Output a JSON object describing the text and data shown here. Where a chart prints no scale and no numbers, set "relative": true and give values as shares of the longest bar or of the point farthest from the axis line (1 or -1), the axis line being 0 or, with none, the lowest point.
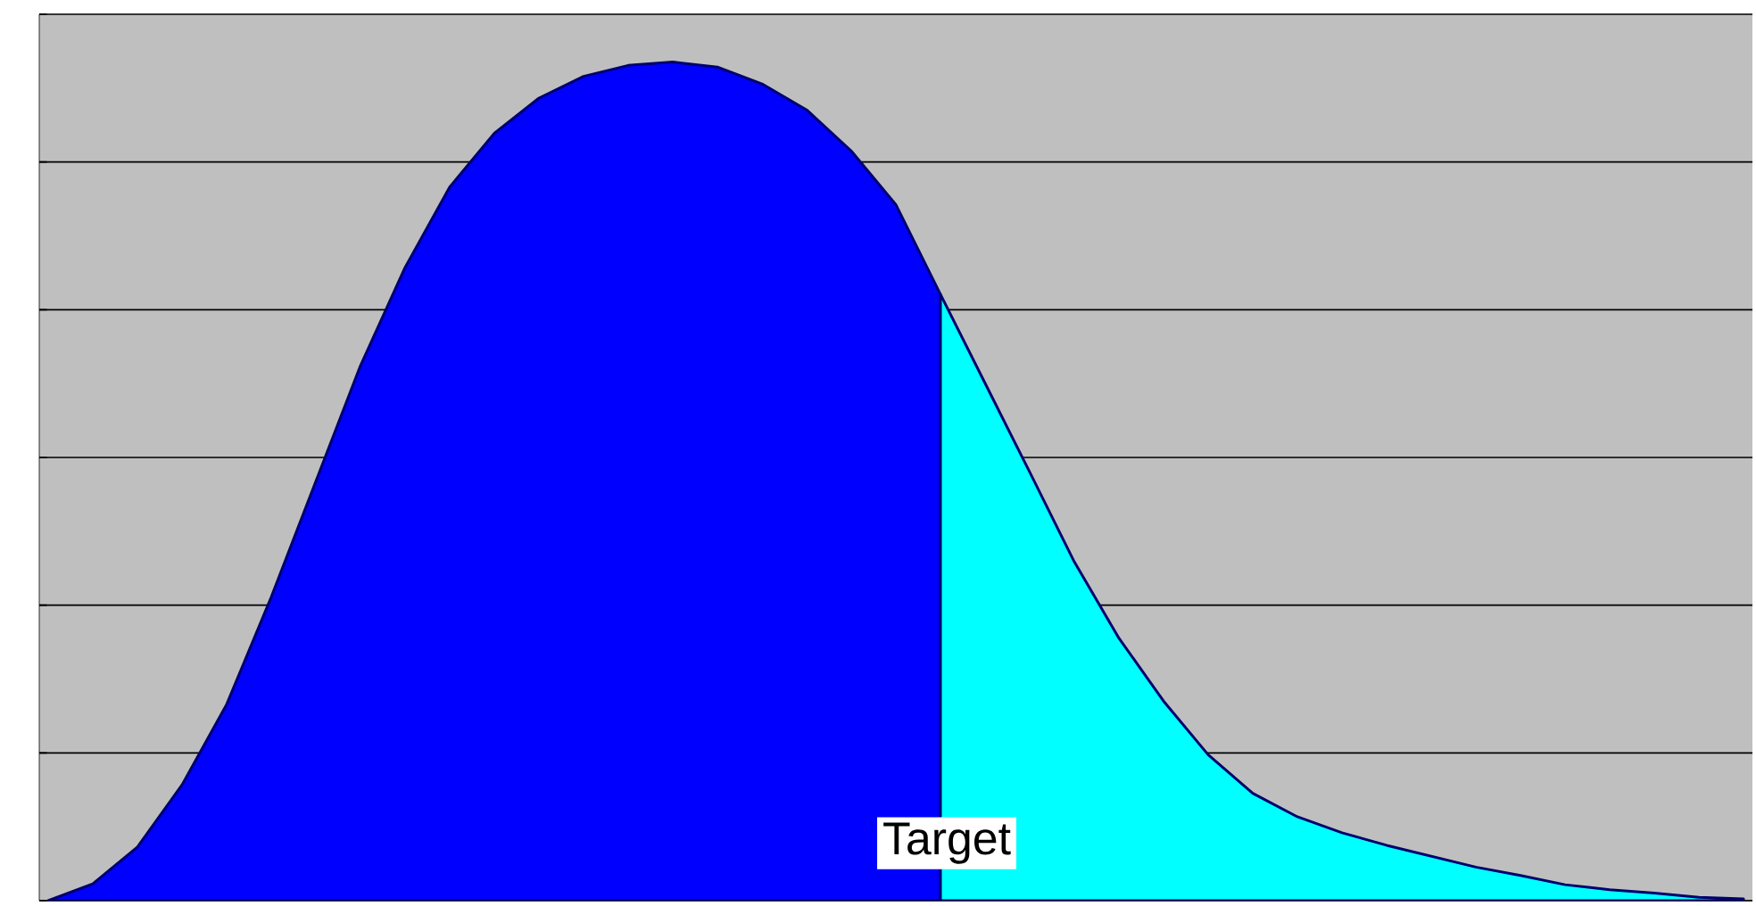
{
  "chart_data": {
    "type": "area",
    "relative": true,
    "grid": "y",
    "categories": [
      null,
      null,
      null,
      null,
      null,
      null,
      null,
      null,
      null,
      null,
      null,
      null,
      null,
      null,
      null,
      null,
      null,
      null,
      null,
      null,
      null,
      null,
      null,
      null,
      null,
      null,
      null,
      null,
      null,
      null,
      null,
      null,
      null,
      null,
      null,
      null,
      null,
      null,
      null
    ],
    "series": [
      {
        "color": "#0000ff",
        "values": [
          0,
          0.02,
          0.064,
          0.138,
          0.234,
          0.362,
          0.5,
          0.638,
          0.755,
          0.851,
          0.915,
          0.957,
          0.983,
          0.996,
          1,
          0.994,
          0.974,
          0.943,
          0.894,
          0.83,
          0.723,
          null,
          null,
          null,
          null,
          null,
          null,
          null,
          null,
          null,
          null,
          null,
          null,
          null,
          null,
          null,
          null,
          null,
          null
        ]
      },
      {
        "color": "#00ffff",
        "values": [
          null,
          null,
          null,
          null,
          null,
          null,
          null,
          null,
          null,
          null,
          null,
          null,
          null,
          null,
          null,
          null,
          null,
          null,
          null,
          null,
          0.723,
          0.617,
          0.511,
          0.404,
          0.313,
          0.238,
          0.174,
          0.128,
          0.1,
          0.081,
          0.066,
          0.053,
          0.04,
          0.03,
          0.019,
          0.013,
          0.009,
          0.004,
          0.002
        ]
      }
    ],
    "annotations": [
      "Target"
    ]
  }
}
